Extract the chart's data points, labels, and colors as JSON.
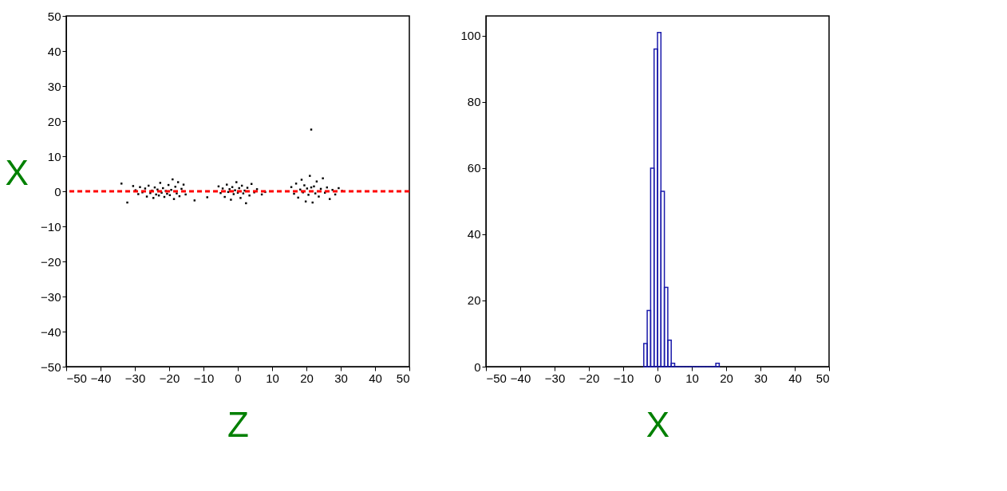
{
  "chart_data": [
    {
      "type": "scatter",
      "xlabel": "Z",
      "ylabel": "X",
      "xlim": [
        -50,
        50
      ],
      "ylim": [
        -50,
        50
      ],
      "xticks": [
        -50,
        -40,
        -30,
        -20,
        -10,
        0,
        10,
        20,
        30,
        40,
        50
      ],
      "yticks": [
        -50,
        -40,
        -30,
        -20,
        -10,
        0,
        10,
        20,
        30,
        40,
        50
      ],
      "marker": "square",
      "grid": false,
      "ref_lines": [
        {
          "axis": "y",
          "value": 0,
          "label": null,
          "color": "#ff0000",
          "line_style": "dashed"
        }
      ],
      "series": [
        {
          "color": "#000000",
          "x": [
            -33.9,
            -32.2,
            -30.5,
            -29.8,
            -29,
            -28.5,
            -27.8,
            -27,
            -26.5,
            -26,
            -25.5,
            -25,
            -24.6,
            -24.2,
            -23.8,
            -23.4,
            -23,
            -22.6,
            -22.2,
            -21.8,
            -21.4,
            -21,
            -20.6,
            -20.2,
            -19.8,
            -19.4,
            -19,
            -18.6,
            -18.2,
            -17.8,
            -17.4,
            -17,
            -16.4,
            -15.8,
            -15.2,
            -12.6,
            -8.9,
            -5.6,
            -5,
            -4.4,
            -3.8,
            -3.2,
            -2.8,
            -2.4,
            -2,
            -1.6,
            -1.2,
            -0.8,
            -0.4,
            0,
            0.4,
            0.8,
            1.2,
            1.6,
            2,
            2.4,
            2.8,
            3.4,
            4,
            4.8,
            5.6,
            7,
            8,
            15.6,
            16.4,
            17,
            17.6,
            18.2,
            18.6,
            19,
            19.4,
            19.8,
            20.2,
            20.6,
            21,
            21.4,
            21.8,
            22.2,
            22.6,
            23,
            23.6,
            24.2,
            24.8,
            25.4,
            26,
            26.8,
            27.6,
            28.4,
            29.4,
            30.4,
            21.4
          ],
          "values": [
            2.2,
            -3.2,
            1.5,
            0.3,
            -0.8,
            1.2,
            -0.3,
            0.8,
            -1.5,
            1.6,
            -0.5,
            0.2,
            -1.9,
            1.1,
            -0.9,
            0.5,
            -1.2,
            2.4,
            -0.4,
            0.9,
            -1.6,
            0.1,
            -0.7,
            1.8,
            -1.1,
            0.4,
            3.4,
            -2.2,
            1.3,
            -0.6,
            2.6,
            -1.4,
            0.7,
            1.9,
            -0.9,
            -2.6,
            -1.7,
            1.4,
            -0.5,
            0.8,
            -1.6,
            1.9,
            -0.2,
            0.6,
            -2.4,
            1.2,
            -0.8,
            0.3,
            2.6,
            -0.4,
            0.9,
            -1.9,
            1.6,
            -0.6,
            0.2,
            -3.4,
            1,
            -1.2,
            2.1,
            -0.3,
            0.6,
            -0.9,
            -0.2,
            1.2,
            -0.7,
            2.2,
            -1.8,
            0.5,
            3.3,
            -0.3,
            1.7,
            -2.9,
            0.8,
            -1,
            4.4,
            1.1,
            -3.2,
            1.4,
            -0.6,
            2.8,
            -1.5,
            0.7,
            3.7,
            -0.4,
            1.1,
            -2.2,
            0.4,
            -0.9,
            0.9,
            0.1,
            17.6
          ]
        }
      ]
    },
    {
      "type": "histogram",
      "xlabel": "X",
      "xlim": [
        -50,
        50
      ],
      "ylim": [
        0,
        106
      ],
      "xticks": [
        -50,
        -40,
        -30,
        -20,
        -10,
        0,
        10,
        20,
        30,
        40,
        50
      ],
      "yticks": [
        0,
        20,
        40,
        60,
        80,
        100
      ],
      "grid": false,
      "bins": [
        -4,
        -3,
        -2,
        -1,
        0,
        1,
        2,
        3,
        4,
        5,
        6,
        7,
        8,
        9,
        10,
        11,
        12,
        13,
        14,
        15,
        16,
        17,
        18
      ],
      "series": [
        {
          "color": "#1a1aaa",
          "values": [
            7,
            17,
            60,
            96,
            101,
            53,
            24,
            8,
            1,
            0,
            0,
            0,
            0,
            0,
            0,
            0,
            0,
            0,
            0,
            0,
            0,
            1
          ]
        }
      ]
    }
  ]
}
